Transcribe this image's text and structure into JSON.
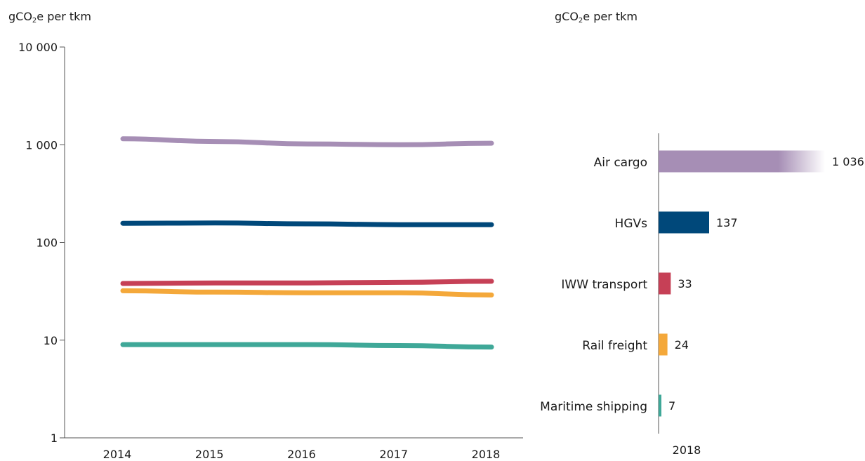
{
  "chart_data": [
    {
      "type": "line",
      "ylabel_main": "gCO",
      "ylabel_sub": "2",
      "ylabel_tail": "e per tkm",
      "yscale": "log",
      "ylim": [
        1,
        10000
      ],
      "yticks": [
        1,
        10,
        100,
        1000,
        10000
      ],
      "ytick_labels": [
        "1",
        "10",
        "100",
        "1 000",
        "10 000"
      ],
      "x": [
        2014,
        2015,
        2016,
        2017,
        2018
      ],
      "xtick_labels": [
        "2014",
        "2015",
        "2016",
        "2017",
        "2018"
      ],
      "grid": false,
      "series": [
        {
          "color": "#a68eb5",
          "values": [
            1150,
            1080,
            1020,
            1000,
            1036
          ]
        },
        {
          "color": "#00487a",
          "values": [
            157,
            158,
            155,
            152,
            152
          ]
        },
        {
          "color": "#c64056",
          "values": [
            38,
            38.5,
            38.5,
            39,
            40
          ]
        },
        {
          "color": "#f4a83a",
          "values": [
            32,
            31,
            30.5,
            30.5,
            29
          ]
        },
        {
          "color": "#3fa898",
          "values": [
            9,
            9,
            9,
            8.8,
            8.5
          ]
        }
      ]
    },
    {
      "type": "bar",
      "orientation": "horizontal",
      "ylabel_main": "gCO",
      "ylabel_sub": "2",
      "ylabel_tail": "e per tkm",
      "xlabel": "2018",
      "categories": [
        "Air cargo",
        "HGVs",
        "IWW transport",
        "Rail freight",
        "Maritime shipping"
      ],
      "values": [
        1036,
        137,
        33,
        24,
        7
      ],
      "value_labels": [
        "1 036",
        "137",
        "33",
        "24",
        "7"
      ],
      "colors": [
        "#a68eb5",
        "#00487a",
        "#c64056",
        "#f4a83a",
        "#3fa898"
      ],
      "truncated_first_bar": true
    }
  ]
}
